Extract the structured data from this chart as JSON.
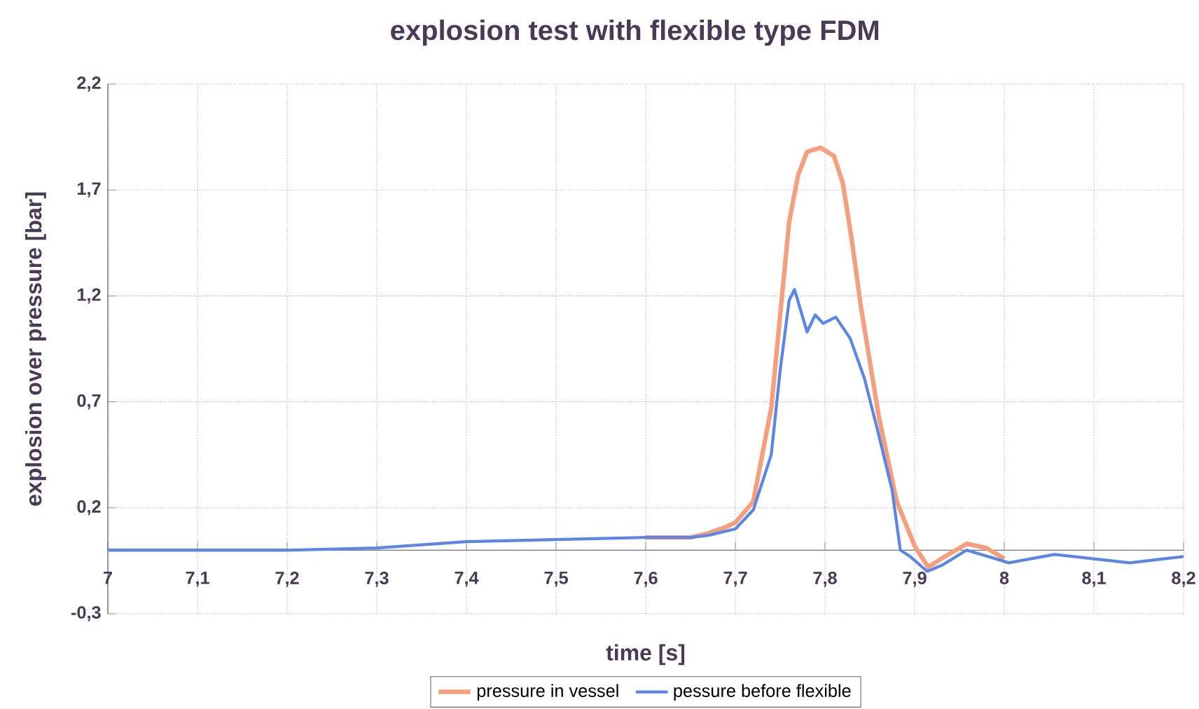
{
  "chart_data": {
    "type": "line",
    "title": "explosion test with flexible type FDM",
    "xlabel": "time [s]",
    "ylabel": "explosion over pressure [bar]",
    "xlim": [
      7,
      8.2
    ],
    "ylim": [
      -0.3,
      2.2
    ],
    "xticks": [
      7,
      {
        "value": 7.1,
        "label": "7,1"
      },
      {
        "value": 7.2,
        "label": "7,2"
      },
      {
        "value": 7.3,
        "label": "7,3"
      },
      {
        "value": 7.4,
        "label": "7,4"
      },
      {
        "value": 7.5,
        "label": "7,5"
      },
      {
        "value": 7.6,
        "label": "7,6"
      },
      {
        "value": 7.7,
        "label": "7,7"
      },
      {
        "value": 7.8,
        "label": "7,8"
      },
      {
        "value": 7.9,
        "label": "7,9"
      },
      8,
      {
        "value": 8.1,
        "label": "8,1"
      },
      {
        "value": 8.2,
        "label": "8,2"
      }
    ],
    "yticks": [
      {
        "value": -0.3,
        "label": "-0,3"
      },
      {
        "value": 0.2,
        "label": "0,2"
      },
      {
        "value": 0.7,
        "label": "0,7"
      },
      {
        "value": 1.2,
        "label": "1,2"
      },
      {
        "value": 1.7,
        "label": "1,7"
      },
      {
        "value": 2.2,
        "label": "2,2"
      }
    ],
    "grid": true,
    "legend": "bottom",
    "marker": "none",
    "line_style": "solid",
    "series": [
      {
        "name": "pressure in vessel",
        "color": "#f4a07e",
        "x": [
          7.6,
          7.65,
          7.67,
          7.69,
          7.7,
          7.72,
          7.74,
          7.76,
          7.77,
          7.78,
          7.795,
          7.81,
          7.82,
          7.83,
          7.84,
          7.86,
          7.88,
          7.9,
          7.915,
          7.93,
          7.958,
          7.98,
          8.0
        ],
        "values": [
          0.06,
          0.06,
          0.08,
          0.11,
          0.13,
          0.23,
          0.67,
          1.55,
          1.77,
          1.88,
          1.9,
          1.86,
          1.73,
          1.46,
          1.15,
          0.63,
          0.23,
          0.02,
          -0.08,
          -0.04,
          0.03,
          0.01,
          -0.04
        ]
      },
      {
        "name": "pessure before flexible",
        "color": "#5b86e6",
        "x": [
          7,
          7.1,
          7.2,
          7.3,
          7.4,
          7.5,
          7.6,
          7.65,
          7.67,
          7.69,
          7.7,
          7.72,
          7.74,
          7.75,
          7.76,
          7.766,
          7.78,
          7.789,
          7.798,
          7.812,
          7.828,
          7.844,
          7.859,
          7.875,
          7.884,
          7.895,
          7.914,
          7.931,
          7.958,
          7.99,
          8.005,
          8.056,
          8.098,
          8.14,
          8.2
        ],
        "values": [
          0,
          0,
          0,
          0.01,
          0.04,
          0.05,
          0.06,
          0.06,
          0.07,
          0.09,
          0.1,
          0.19,
          0.45,
          0.85,
          1.18,
          1.23,
          1.03,
          1.11,
          1.07,
          1.1,
          1.0,
          0.81,
          0.56,
          0.28,
          0.0,
          -0.03,
          -0.1,
          -0.07,
          0.0,
          -0.04,
          -0.06,
          -0.02,
          -0.04,
          -0.06,
          -0.03
        ]
      }
    ]
  }
}
